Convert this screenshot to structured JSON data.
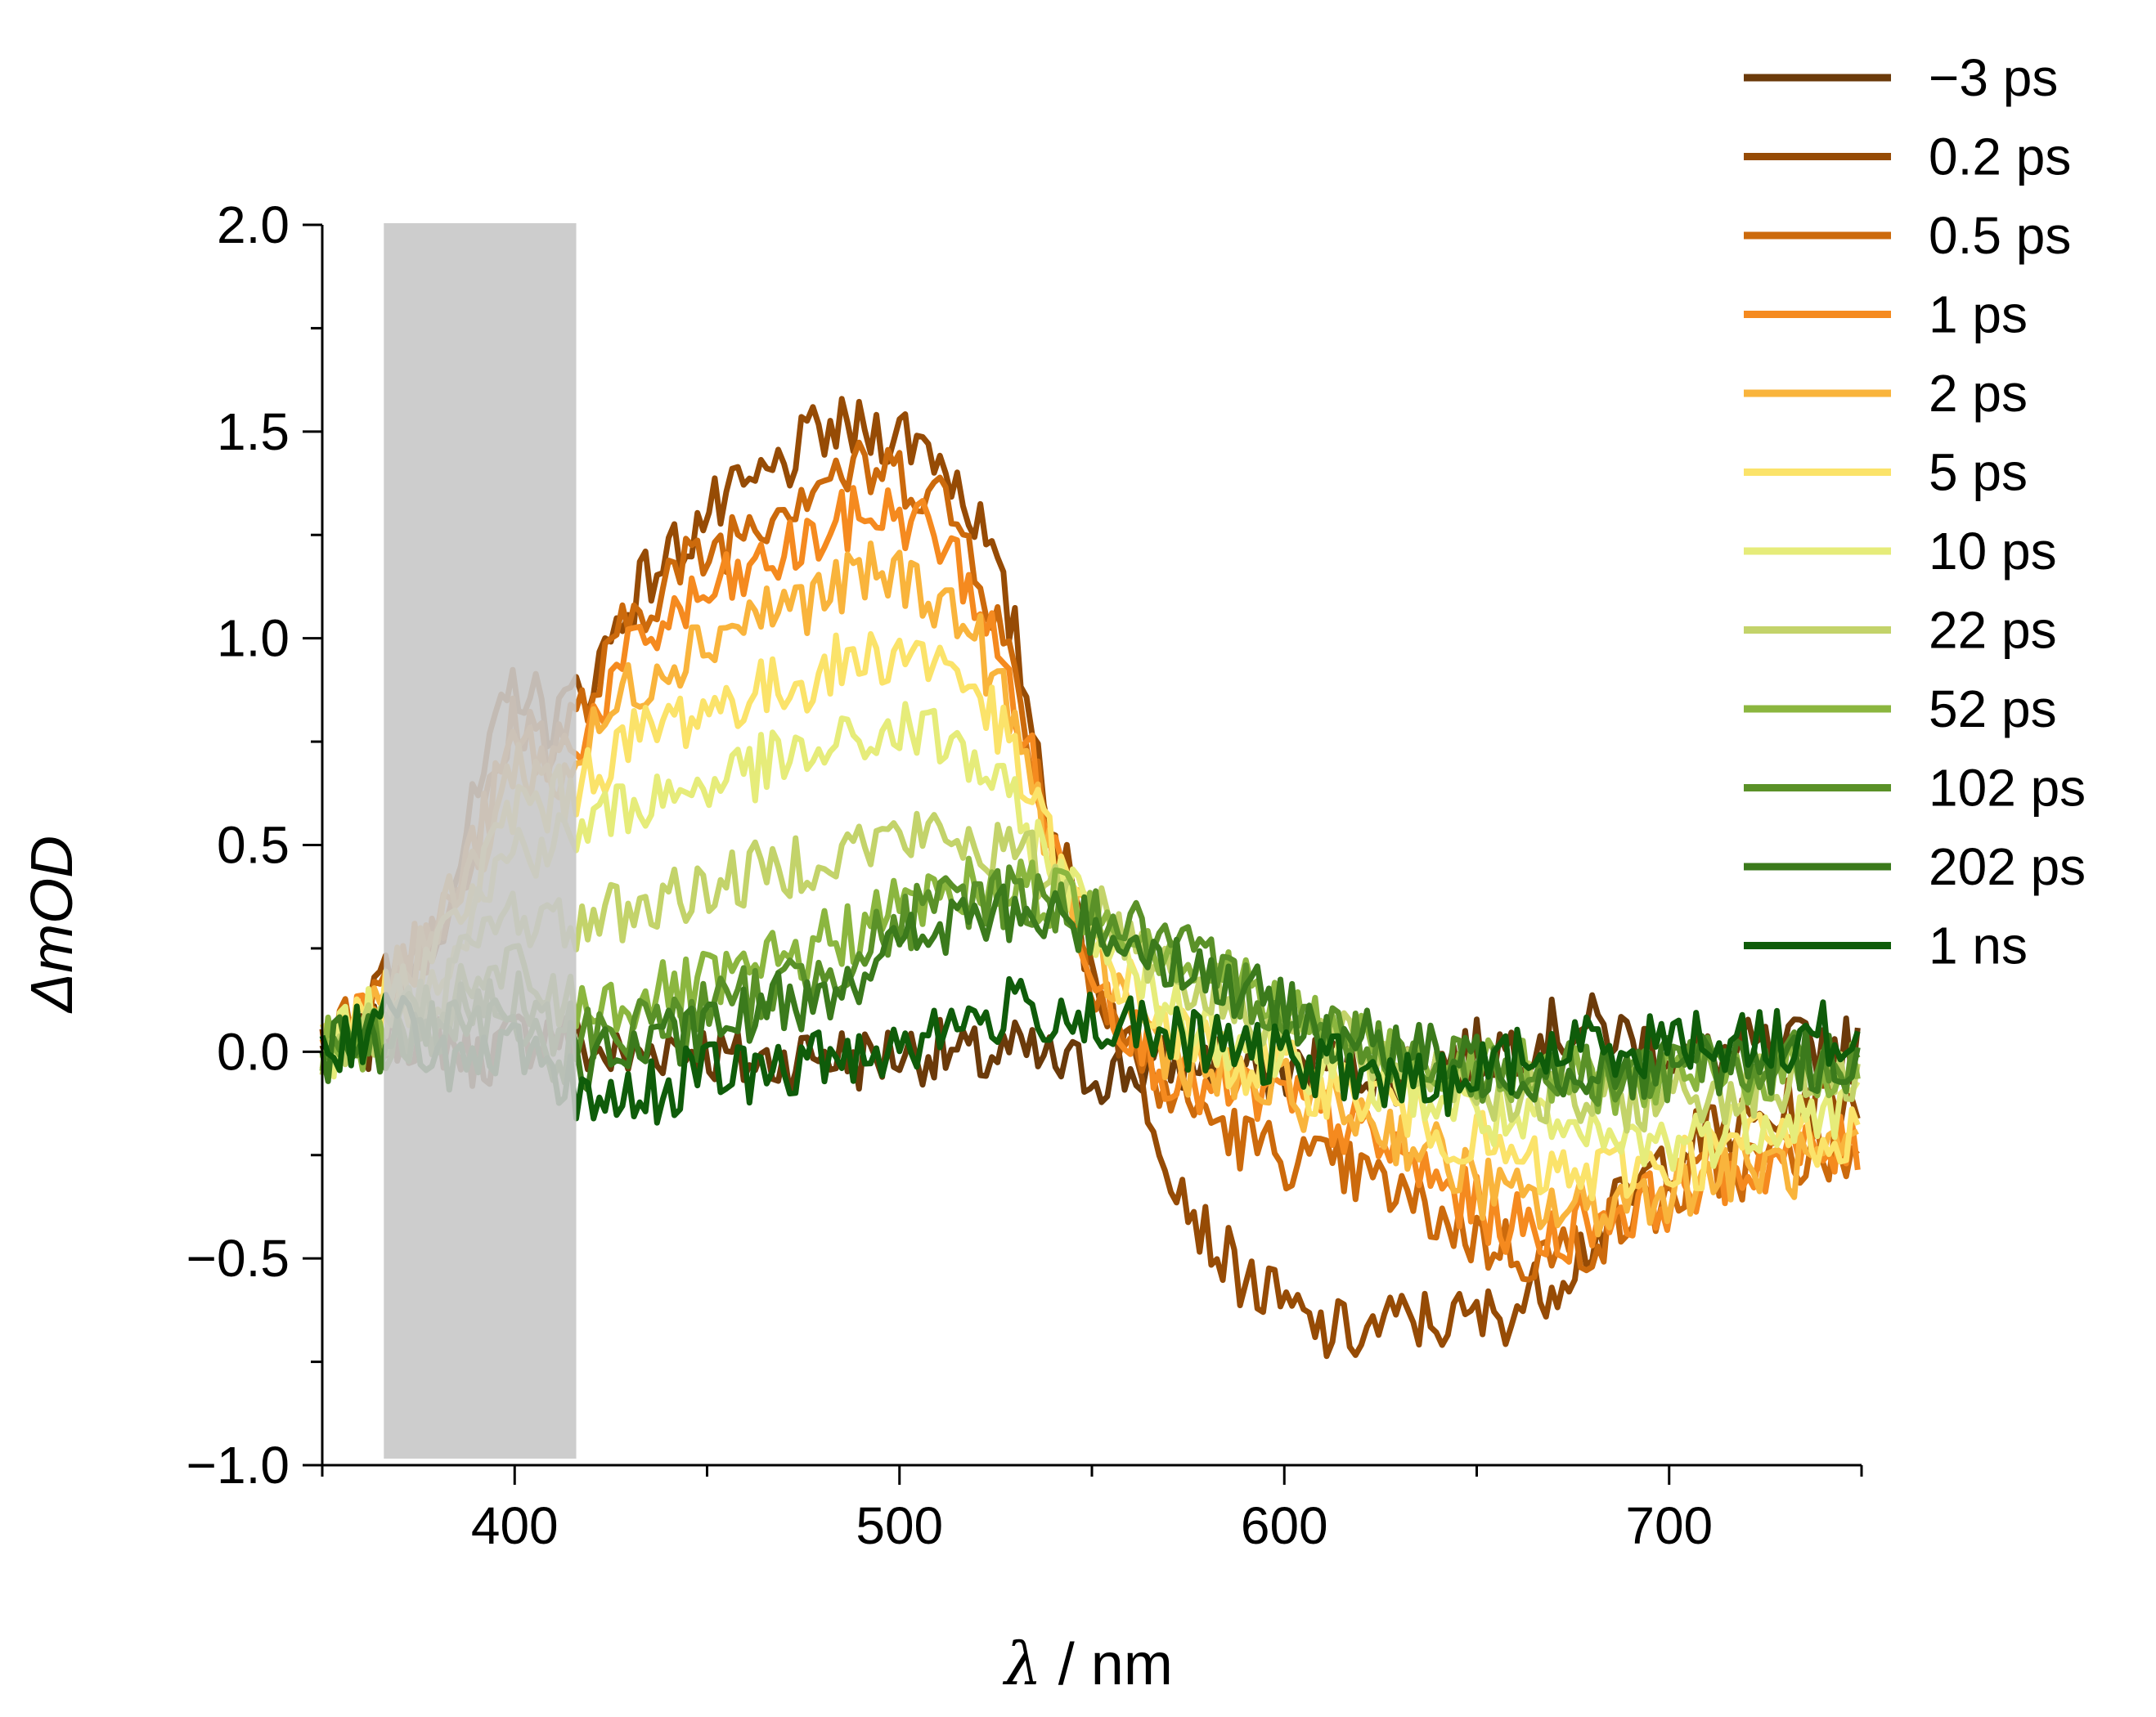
{
  "chart_data": {
    "type": "line",
    "ylabel": "ΔmOD",
    "xlabel_symbol": "λ",
    "xlabel_unit": " / nm",
    "xlim": [
      350,
      750
    ],
    "ylim": [
      -1.0,
      2.0
    ],
    "x_ticks": [
      400,
      500,
      600,
      700
    ],
    "x_tick_labels": [
      "400",
      "500",
      "600",
      "700"
    ],
    "x_minor_ticks": [
      350,
      450,
      550,
      650,
      750
    ],
    "y_ticks": [
      -1.0,
      -0.5,
      0.0,
      0.5,
      1.0,
      1.5,
      2.0
    ],
    "y_tick_labels": [
      "−1.0",
      "−0.5",
      "0.0",
      "0.5",
      "1.0",
      "1.5",
      "2.0"
    ],
    "y_minor_ticks": [
      -0.75,
      -0.25,
      0.25,
      0.75,
      1.25,
      1.75
    ],
    "shaded_region": {
      "x_start": 366,
      "x_end": 416,
      "color": "#c8c8c8",
      "note": "masked pump-scatter region"
    },
    "legend_position": "top-right, outside plot",
    "x": [
      350,
      360,
      370,
      380,
      390,
      400,
      410,
      420,
      430,
      440,
      450,
      460,
      470,
      480,
      490,
      500,
      510,
      520,
      530,
      540,
      550,
      560,
      570,
      580,
      590,
      600,
      610,
      620,
      630,
      640,
      650,
      660,
      670,
      680,
      690,
      700,
      710,
      720,
      730,
      740,
      750
    ],
    "series": [
      {
        "name": "−3 ps",
        "color": "#6b3a0a",
        "values": [
          0.0,
          0.02,
          0.05,
          0.04,
          -0.02,
          0.03,
          0.05,
          0.0,
          -0.02,
          0.02,
          0.0,
          -0.03,
          -0.02,
          0.0,
          -0.02,
          0.0,
          0.0,
          -0.02,
          0.0,
          -0.03,
          -0.05,
          -0.05,
          -0.03,
          -0.02,
          -0.04,
          -0.05,
          -0.03,
          -0.03,
          -0.05,
          -0.02,
          0.0,
          0.02,
          0.05,
          0.06,
          0.03,
          0.0,
          -0.02,
          0.0,
          0.0,
          0.02,
          0.0
        ]
      },
      {
        "name": "0.2 ps",
        "color": "#964b05",
        "values": [
          0.0,
          0.1,
          0.2,
          0.3,
          0.6,
          0.9,
          0.8,
          0.9,
          1.1,
          1.2,
          1.3,
          1.35,
          1.42,
          1.5,
          1.5,
          1.5,
          1.45,
          1.3,
          1.0,
          0.55,
          0.2,
          0.0,
          -0.25,
          -0.45,
          -0.55,
          -0.62,
          -0.68,
          -0.68,
          -0.65,
          -0.65,
          -0.65,
          -0.62,
          -0.55,
          -0.45,
          -0.35,
          -0.25,
          -0.2,
          -0.18,
          -0.15,
          -0.12,
          -0.1
        ]
      },
      {
        "name": "0.5 ps",
        "color": "#cc6a0c",
        "values": [
          0.0,
          0.1,
          0.2,
          0.3,
          0.5,
          0.8,
          0.75,
          0.85,
          1.05,
          1.15,
          1.2,
          1.28,
          1.33,
          1.4,
          1.4,
          1.4,
          1.35,
          1.2,
          0.9,
          0.5,
          0.2,
          0.0,
          -0.1,
          -0.15,
          -0.22,
          -0.25,
          -0.28,
          -0.3,
          -0.35,
          -0.4,
          -0.45,
          -0.48,
          -0.5,
          -0.45,
          -0.4,
          -0.35,
          -0.3,
          -0.28,
          -0.25,
          -0.25,
          -0.25
        ]
      },
      {
        "name": "1 ps",
        "color": "#f58a1f",
        "values": [
          0.0,
          0.1,
          0.2,
          0.3,
          0.5,
          0.75,
          0.7,
          0.8,
          0.95,
          1.05,
          1.1,
          1.15,
          1.2,
          1.25,
          1.3,
          1.3,
          1.25,
          1.1,
          0.85,
          0.5,
          0.22,
          0.05,
          -0.05,
          -0.1,
          -0.1,
          -0.12,
          -0.15,
          -0.2,
          -0.25,
          -0.32,
          -0.38,
          -0.42,
          -0.45,
          -0.4,
          -0.38,
          -0.35,
          -0.3,
          -0.28,
          -0.25,
          -0.25,
          -0.22
        ]
      },
      {
        "name": "2 ps",
        "color": "#f9b43c",
        "values": [
          0.0,
          0.1,
          0.2,
          0.3,
          0.45,
          0.7,
          0.65,
          0.75,
          0.88,
          0.95,
          1.0,
          1.05,
          1.08,
          1.1,
          1.15,
          1.15,
          1.1,
          1.0,
          0.78,
          0.48,
          0.25,
          0.1,
          0.0,
          -0.05,
          -0.08,
          -0.1,
          -0.12,
          -0.15,
          -0.2,
          -0.25,
          -0.32,
          -0.36,
          -0.38,
          -0.38,
          -0.35,
          -0.33,
          -0.3,
          -0.28,
          -0.28,
          -0.27,
          -0.25
        ]
      },
      {
        "name": "5 ps",
        "color": "#fbe36a",
        "values": [
          0.0,
          0.08,
          0.15,
          0.25,
          0.4,
          0.6,
          0.6,
          0.68,
          0.75,
          0.8,
          0.83,
          0.86,
          0.88,
          0.92,
          0.95,
          0.97,
          0.95,
          0.88,
          0.7,
          0.48,
          0.28,
          0.15,
          0.05,
          0.0,
          -0.03,
          -0.05,
          -0.08,
          -0.1,
          -0.13,
          -0.18,
          -0.22,
          -0.27,
          -0.3,
          -0.3,
          -0.28,
          -0.27,
          -0.25,
          -0.22,
          -0.2,
          -0.2,
          -0.2
        ]
      },
      {
        "name": "10 ps",
        "color": "#e6ec7a",
        "values": [
          0.0,
          0.06,
          0.12,
          0.2,
          0.35,
          0.5,
          0.5,
          0.55,
          0.6,
          0.62,
          0.65,
          0.68,
          0.7,
          0.72,
          0.75,
          0.78,
          0.76,
          0.7,
          0.58,
          0.45,
          0.32,
          0.2,
          0.12,
          0.06,
          0.02,
          0.0,
          -0.03,
          -0.05,
          -0.08,
          -0.12,
          -0.15,
          -0.18,
          -0.2,
          -0.22,
          -0.22,
          -0.22,
          -0.2,
          -0.18,
          -0.15,
          -0.15,
          -0.12
        ]
      },
      {
        "name": "22 ps",
        "color": "#c3d36a",
        "values": [
          0.0,
          0.04,
          0.08,
          0.15,
          0.25,
          0.35,
          0.3,
          0.32,
          0.35,
          0.37,
          0.4,
          0.42,
          0.45,
          0.48,
          0.5,
          0.52,
          0.52,
          0.5,
          0.48,
          0.42,
          0.35,
          0.28,
          0.2,
          0.14,
          0.1,
          0.06,
          0.03,
          0.0,
          -0.03,
          -0.05,
          -0.08,
          -0.1,
          -0.12,
          -0.12,
          -0.12,
          -0.1,
          -0.1,
          -0.08,
          -0.08,
          -0.05,
          -0.05
        ]
      },
      {
        "name": "52 ps",
        "color": "#8bb63f",
        "values": [
          0.0,
          0.03,
          0.05,
          0.1,
          0.15,
          0.2,
          0.12,
          0.12,
          0.12,
          0.14,
          0.16,
          0.18,
          0.22,
          0.26,
          0.3,
          0.35,
          0.38,
          0.4,
          0.4,
          0.38,
          0.35,
          0.3,
          0.25,
          0.2,
          0.15,
          0.1,
          0.06,
          0.02,
          0.0,
          -0.02,
          -0.03,
          -0.05,
          -0.06,
          -0.07,
          -0.07,
          -0.07,
          -0.06,
          -0.05,
          -0.05,
          -0.04,
          -0.03
        ]
      },
      {
        "name": "102 ps",
        "color": "#5a9128",
        "values": [
          0.0,
          0.02,
          0.04,
          0.06,
          0.1,
          0.12,
          0.05,
          0.05,
          0.06,
          0.08,
          0.1,
          0.13,
          0.16,
          0.2,
          0.25,
          0.3,
          0.35,
          0.38,
          0.38,
          0.36,
          0.33,
          0.3,
          0.25,
          0.2,
          0.15,
          0.1,
          0.06,
          0.03,
          0.0,
          -0.02,
          -0.04,
          -0.05,
          -0.05,
          -0.05,
          -0.05,
          -0.05,
          -0.04,
          -0.04,
          -0.03,
          -0.03,
          -0.02
        ]
      },
      {
        "name": "202 ps",
        "color": "#3b7a1c",
        "values": [
          0.0,
          0.02,
          0.03,
          0.04,
          0.05,
          0.06,
          0.0,
          -0.02,
          0.0,
          0.02,
          0.05,
          0.08,
          0.12,
          0.15,
          0.2,
          0.25,
          0.3,
          0.32,
          0.33,
          0.32,
          0.3,
          0.27,
          0.23,
          0.18,
          0.14,
          0.1,
          0.06,
          0.03,
          0.0,
          -0.02,
          -0.03,
          -0.04,
          -0.04,
          -0.04,
          -0.04,
          -0.03,
          -0.03,
          -0.02,
          -0.02,
          -0.02,
          -0.01
        ]
      },
      {
        "name": "1 ns",
        "color": "#0f5c0a",
        "values": [
          0.0,
          0.05,
          0.08,
          0.0,
          -0.05,
          0.0,
          -0.08,
          -0.1,
          -0.12,
          -0.08,
          -0.05,
          -0.05,
          -0.05,
          -0.02,
          0.0,
          0.02,
          0.05,
          0.08,
          0.1,
          0.1,
          0.08,
          0.05,
          0.03,
          0.02,
          0.0,
          -0.02,
          -0.03,
          -0.05,
          -0.08,
          -0.08,
          -0.05,
          -0.02,
          0.0,
          0.02,
          0.02,
          0.02,
          0.03,
          0.03,
          0.03,
          0.04,
          0.05
        ]
      }
    ]
  }
}
